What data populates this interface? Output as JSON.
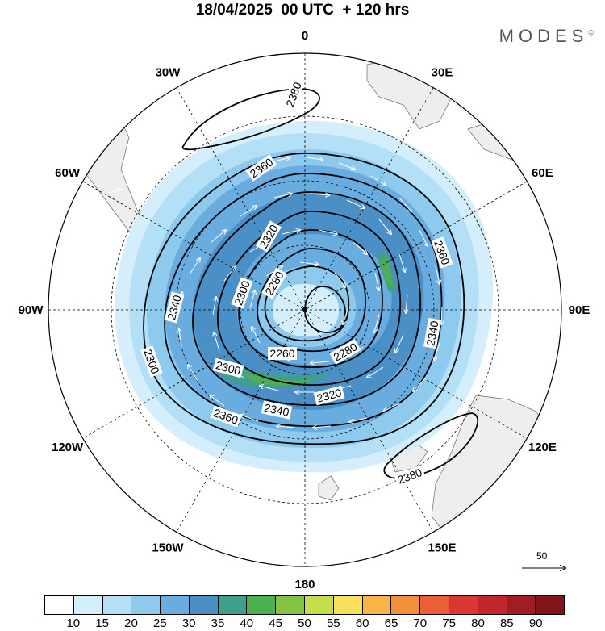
{
  "title": "18/04/2025  00 UTC  + 120 hrs",
  "brand": "MODES",
  "brand_mark": "©",
  "longitude_labels": [
    {
      "text": "0",
      "deg": 0
    },
    {
      "text": "30E",
      "deg": 30
    },
    {
      "text": "60E",
      "deg": 60
    },
    {
      "text": "90E",
      "deg": 90
    },
    {
      "text": "120E",
      "deg": 120
    },
    {
      "text": "150E",
      "deg": 150
    },
    {
      "text": "180",
      "deg": 180
    },
    {
      "text": "150W",
      "deg": 210
    },
    {
      "text": "120W",
      "deg": 240
    },
    {
      "text": "90W",
      "deg": 270
    },
    {
      "text": "60W",
      "deg": 300
    },
    {
      "text": "30W",
      "deg": 330
    }
  ],
  "contour_labels": [
    "2380",
    "2360",
    "2340",
    "2320",
    "2300",
    "2280",
    "2260",
    "2280",
    "2300",
    "2320",
    "2340",
    "2360",
    "2380",
    "2340",
    "2360",
    "2300"
  ],
  "colorbar": {
    "colors": [
      "#ffffff",
      "#d4eefb",
      "#b3e0f6",
      "#8ec9ee",
      "#69ade0",
      "#4b8fc7",
      "#3f9e8e",
      "#4caf50",
      "#82c341",
      "#c5dd4a",
      "#f7e05a",
      "#f7b545",
      "#f28f3b",
      "#ea5f35",
      "#d9372f",
      "#c0262b",
      "#a11d26",
      "#821519"
    ],
    "labels": [
      "10",
      "15",
      "20",
      "25",
      "30",
      "35",
      "40",
      "45",
      "50",
      "55",
      "60",
      "65",
      "70",
      "75",
      "80",
      "85",
      "90"
    ]
  },
  "reference_vector": {
    "label": "50"
  }
}
